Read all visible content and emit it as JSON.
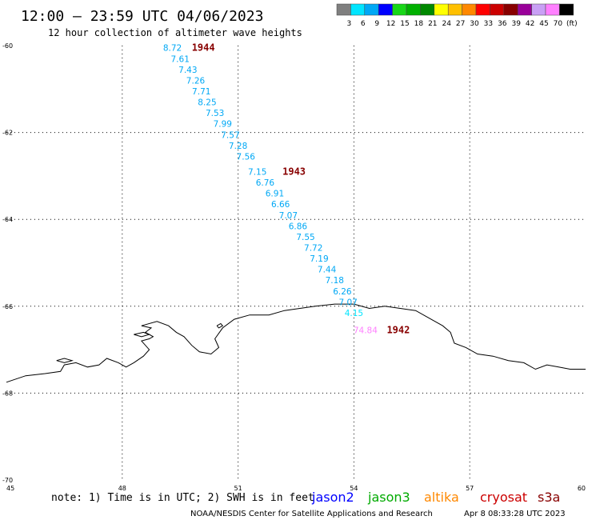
{
  "header": {
    "title": "12:00 — 23:59 UTC 04/06/2023",
    "subtitle": "12 hour collection of altimeter wave heights"
  },
  "colorbar": {
    "colors": [
      "#7f7f7f",
      "#00e5ff",
      "#00a8f5",
      "#0000ff",
      "#17d717",
      "#00b000",
      "#008800",
      "#ffff00",
      "#ffc000",
      "#ff8800",
      "#ff0000",
      "#cc0000",
      "#880000",
      "#990099",
      "#c9a0f5",
      "#ff80ff",
      "#000000"
    ],
    "labels": [
      "3",
      "6",
      "9",
      "12",
      "15",
      "18",
      "21",
      "24",
      "27",
      "30",
      "33",
      "36",
      "39",
      "42",
      "45",
      "70",
      "(ft)"
    ]
  },
  "footer": {
    "note": "note: 1) Time is in UTC; 2) SWH is in feet",
    "satellites": [
      {
        "name": "jason2",
        "color": "#0000ff"
      },
      {
        "name": "jason3",
        "color": "#00aa00"
      },
      {
        "name": "altika",
        "color": "#ff8800"
      },
      {
        "name": "cryosat",
        "color": "#cc0000"
      },
      {
        "name": "s3a",
        "color": "#880000"
      }
    ],
    "credit": "NOAA/NESDIS Center for Satellite Applications and Research",
    "timestamp": "Apr  8 08:33:28 UTC 2023"
  },
  "chart_data": {
    "type": "scatter",
    "xlim": [
      45,
      60
    ],
    "ylim": [
      -70,
      -60
    ],
    "x_ticks": [
      "45",
      "48",
      "51",
      "54",
      "57",
      "60"
    ],
    "y_ticks": [
      "-60",
      "-62",
      "-64",
      "-66",
      "-68",
      "-70"
    ],
    "grid": true,
    "points": [
      {
        "x": 49.3,
        "y": -60.05,
        "label": "8.72",
        "color": "#00a8f5"
      },
      {
        "x": 49.5,
        "y": -60.3,
        "label": "7.61",
        "color": "#00a8f5"
      },
      {
        "x": 49.7,
        "y": -60.55,
        "label": "7.43",
        "color": "#00a8f5"
      },
      {
        "x": 49.9,
        "y": -60.8,
        "label": "7.26",
        "color": "#00a8f5"
      },
      {
        "x": 50.05,
        "y": -61.05,
        "label": "7.71",
        "color": "#00a8f5"
      },
      {
        "x": 50.2,
        "y": -61.3,
        "label": "8.25",
        "color": "#00a8f5"
      },
      {
        "x": 50.4,
        "y": -61.55,
        "label": "7.53",
        "color": "#00a8f5"
      },
      {
        "x": 50.6,
        "y": -61.8,
        "label": "7.99",
        "color": "#00a8f5"
      },
      {
        "x": 50.8,
        "y": -62.05,
        "label": "7.57",
        "color": "#00a8f5"
      },
      {
        "x": 51.0,
        "y": -62.3,
        "label": "7.28",
        "color": "#00a8f5"
      },
      {
        "x": 51.2,
        "y": -62.55,
        "label": "7.56",
        "color": "#00a8f5"
      },
      {
        "x": 51.5,
        "y": -62.9,
        "label": "7.15",
        "color": "#00a8f5"
      },
      {
        "x": 51.7,
        "y": -63.15,
        "label": "6.76",
        "color": "#00a8f5"
      },
      {
        "x": 51.95,
        "y": -63.4,
        "label": "6.91",
        "color": "#00a8f5"
      },
      {
        "x": 52.1,
        "y": -63.65,
        "label": "6.66",
        "color": "#00a8f5"
      },
      {
        "x": 52.3,
        "y": -63.9,
        "label": "7.07",
        "color": "#00a8f5"
      },
      {
        "x": 52.55,
        "y": -64.15,
        "label": "6.86",
        "color": "#00a8f5"
      },
      {
        "x": 52.75,
        "y": -64.4,
        "label": "7.55",
        "color": "#00a8f5"
      },
      {
        "x": 52.95,
        "y": -64.65,
        "label": "7.72",
        "color": "#00a8f5"
      },
      {
        "x": 53.1,
        "y": -64.9,
        "label": "7.19",
        "color": "#00a8f5"
      },
      {
        "x": 53.3,
        "y": -65.15,
        "label": "7.44",
        "color": "#00a8f5"
      },
      {
        "x": 53.5,
        "y": -65.4,
        "label": "7.18",
        "color": "#00a8f5"
      },
      {
        "x": 53.7,
        "y": -65.65,
        "label": "6.26",
        "color": "#00a8f5"
      },
      {
        "x": 53.85,
        "y": -65.9,
        "label": "7.07",
        "color": "#00a8f5"
      },
      {
        "x": 54.0,
        "y": -66.15,
        "label": "4.15",
        "color": "#00e5ff"
      },
      {
        "x": 54.3,
        "y": -66.55,
        "label": "74.84",
        "color": "#ff80ff"
      }
    ],
    "annotations": [
      {
        "x": 50.1,
        "y": -60.05,
        "text": "1944",
        "color": "#880000"
      },
      {
        "x": 52.45,
        "y": -62.9,
        "text": "1943",
        "color": "#880000"
      },
      {
        "x": 55.15,
        "y": -66.55,
        "text": "1942",
        "color": "#880000"
      }
    ],
    "coastline": [
      [
        45,
        -67.75
      ],
      [
        45.5,
        -67.6
      ],
      [
        46,
        -67.55
      ],
      [
        46.4,
        -67.5
      ],
      [
        46.5,
        -67.35
      ],
      [
        46.8,
        -67.3
      ],
      [
        47.1,
        -67.4
      ],
      [
        47.4,
        -67.35
      ],
      [
        47.6,
        -67.2
      ],
      [
        47.9,
        -67.3
      ],
      [
        48.1,
        -67.4
      ],
      [
        48.3,
        -67.3
      ],
      [
        48.55,
        -67.15
      ],
      [
        48.7,
        -67.0
      ],
      [
        48.5,
        -66.8
      ],
      [
        48.7,
        -66.75
      ],
      [
        48.8,
        -66.7
      ],
      [
        48.6,
        -66.6
      ],
      [
        48.75,
        -66.5
      ],
      [
        48.5,
        -66.45
      ],
      [
        48.9,
        -66.35
      ],
      [
        49.2,
        -66.45
      ],
      [
        49.4,
        -66.6
      ],
      [
        49.6,
        -66.7
      ],
      [
        49.8,
        -66.9
      ],
      [
        50.0,
        -67.05
      ],
      [
        50.3,
        -67.1
      ],
      [
        50.5,
        -66.95
      ],
      [
        50.4,
        -66.75
      ],
      [
        50.6,
        -66.5
      ],
      [
        50.9,
        -66.3
      ],
      [
        51.3,
        -66.2
      ],
      [
        51.8,
        -66.2
      ],
      [
        52.2,
        -66.1
      ],
      [
        52.6,
        -66.05
      ],
      [
        53.0,
        -66.0
      ],
      [
        53.5,
        -65.95
      ],
      [
        54.0,
        -65.95
      ],
      [
        54.4,
        -66.05
      ],
      [
        54.8,
        -66.0
      ],
      [
        55.2,
        -66.05
      ],
      [
        55.6,
        -66.1
      ],
      [
        56.0,
        -66.3
      ],
      [
        56.3,
        -66.45
      ],
      [
        56.5,
        -66.6
      ],
      [
        56.6,
        -66.85
      ],
      [
        56.9,
        -66.95
      ],
      [
        57.2,
        -67.1
      ],
      [
        57.6,
        -67.15
      ],
      [
        58.0,
        -67.25
      ],
      [
        58.4,
        -67.3
      ],
      [
        58.7,
        -67.45
      ],
      [
        59.0,
        -67.35
      ],
      [
        59.3,
        -67.4
      ],
      [
        59.6,
        -67.45
      ],
      [
        60,
        -67.45
      ]
    ],
    "islands": [
      [
        [
          46.3,
          -67.25
        ],
        [
          46.5,
          -67.2
        ],
        [
          46.7,
          -67.25
        ],
        [
          46.5,
          -67.3
        ],
        [
          46.3,
          -67.25
        ]
      ],
      [
        [
          48.3,
          -66.65
        ],
        [
          48.55,
          -66.6
        ],
        [
          48.7,
          -66.65
        ],
        [
          48.5,
          -66.7
        ],
        [
          48.3,
          -66.65
        ]
      ],
      [
        [
          50.45,
          -66.45
        ],
        [
          50.55,
          -66.4
        ],
        [
          50.6,
          -66.45
        ],
        [
          50.5,
          -66.5
        ],
        [
          50.45,
          -66.45
        ]
      ]
    ]
  }
}
